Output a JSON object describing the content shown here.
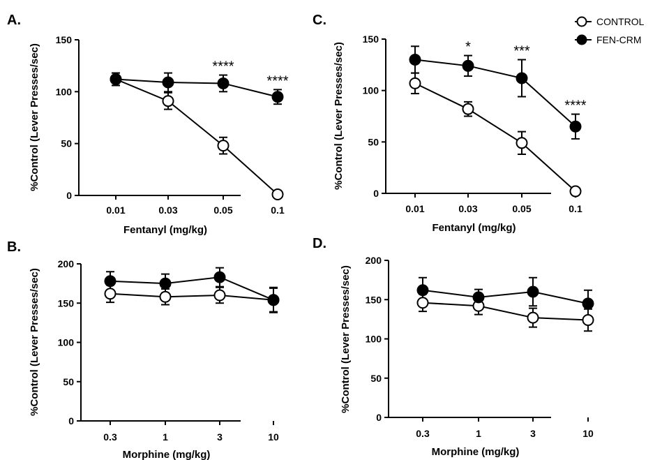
{
  "legend": [
    {
      "name": "CONTROL",
      "fill": "#ffffff"
    },
    {
      "name": "FEN-CRM",
      "fill": "#000000"
    }
  ],
  "chart_data": [
    {
      "panel": "A.",
      "type": "line",
      "categories": [
        "0.01",
        "0.03",
        "0.05",
        "0.1"
      ],
      "xlabel": "Fentanyl (mg/kg)",
      "ylabel": "%Control (Lever Presses/sec)",
      "ylim": [
        0,
        150
      ],
      "yticks": [
        0,
        50,
        100,
        150
      ],
      "series": [
        {
          "name": "CONTROL",
          "values": [
            112,
            91,
            48,
            1
          ],
          "errors": [
            6,
            8,
            8,
            2
          ]
        },
        {
          "name": "FEN-CRM",
          "values": [
            112,
            109,
            108,
            95
          ],
          "errors": [
            6,
            9,
            8,
            7
          ]
        }
      ],
      "annotations": [
        {
          "category": "0.05",
          "text": "****"
        },
        {
          "category": "0.1",
          "text": "****"
        }
      ]
    },
    {
      "panel": "C.",
      "type": "line",
      "categories": [
        "0.01",
        "0.03",
        "0.05",
        "0.1"
      ],
      "xlabel": "Fentanyl (mg/kg)",
      "ylabel": "%Control (Lever Presses/sec)",
      "ylim": [
        0,
        150
      ],
      "yticks": [
        0,
        50,
        100,
        150
      ],
      "series": [
        {
          "name": "CONTROL",
          "values": [
            107,
            82,
            49,
            2
          ],
          "errors": [
            10,
            7,
            11,
            2
          ]
        },
        {
          "name": "FEN-CRM",
          "values": [
            130,
            124,
            112,
            65
          ],
          "errors": [
            13,
            10,
            18,
            12
          ]
        }
      ],
      "annotations": [
        {
          "category": "0.03",
          "text": "*"
        },
        {
          "category": "0.05",
          "text": "***"
        },
        {
          "category": "0.1",
          "text": "****"
        }
      ]
    },
    {
      "panel": "B.",
      "type": "line",
      "categories": [
        "0.3",
        "1",
        "3",
        "10"
      ],
      "xlabel": "Morphine (mg/kg)",
      "ylabel": "%Control (Lever Presses/sec)",
      "ylim": [
        0,
        200
      ],
      "yticks": [
        0,
        50,
        100,
        150,
        200
      ],
      "series": [
        {
          "name": "CONTROL",
          "values": [
            162,
            158,
            160,
            154
          ],
          "errors": [
            11,
            10,
            10,
            15
          ]
        },
        {
          "name": "FEN-CRM",
          "values": [
            178,
            175,
            183,
            154
          ],
          "errors": [
            12,
            12,
            12,
            16
          ]
        }
      ],
      "annotations": []
    },
    {
      "panel": "D.",
      "type": "line",
      "categories": [
        "0.3",
        "1",
        "3",
        "10"
      ],
      "xlabel": "Morphine (mg/kg)",
      "ylabel": "%Control (Lever Presses/sec)",
      "ylim": [
        0,
        200
      ],
      "yticks": [
        0,
        50,
        100,
        150,
        200
      ],
      "series": [
        {
          "name": "CONTROL",
          "values": [
            146,
            142,
            127,
            124
          ],
          "errors": [
            11,
            11,
            12,
            14
          ]
        },
        {
          "name": "FEN-CRM",
          "values": [
            162,
            153,
            160,
            145
          ],
          "errors": [
            16,
            10,
            18,
            17
          ]
        }
      ],
      "annotations": []
    }
  ]
}
